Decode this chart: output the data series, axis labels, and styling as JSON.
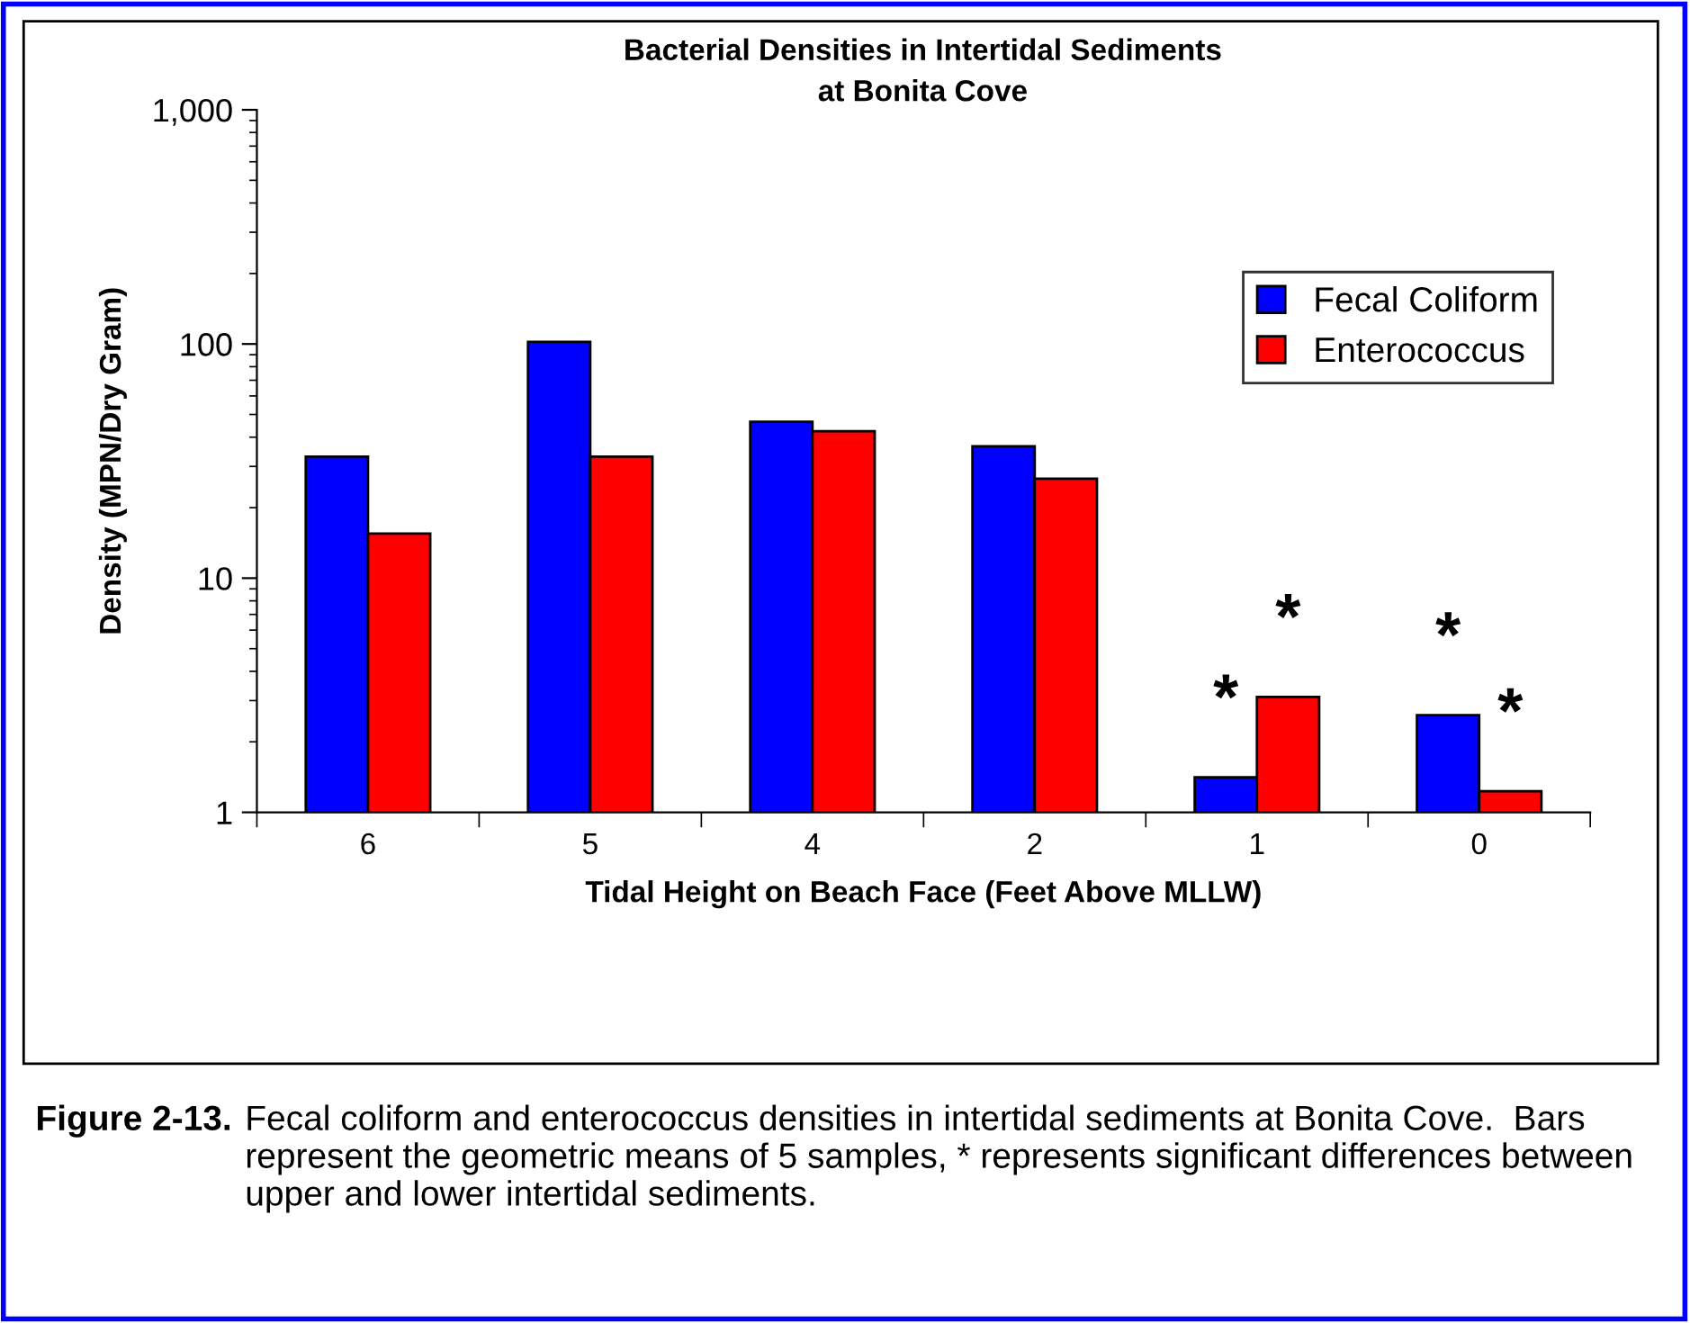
{
  "chart_data": {
    "type": "bar",
    "title": "Bacterial Densities in Intertidal Sediments\nat Bonita Cove",
    "xlabel": "Tidal Height on Beach Face (Feet Above MLLW)",
    "ylabel": "Density (MPN/Dry Gram)",
    "categories": [
      "6",
      "5",
      "4",
      "2",
      "1",
      "0"
    ],
    "series": [
      {
        "name": "Fecal Coliform",
        "color": "#0000ff",
        "values": [
          33,
          102,
          46.5,
          36.6,
          1.41,
          2.6
        ]
      },
      {
        "name": "Enterococcus",
        "color": "#ff0000",
        "values": [
          15.5,
          33,
          42.4,
          26.6,
          3.11,
          1.23
        ]
      }
    ],
    "log": true,
    "ylim": [
      1,
      1000
    ],
    "yticks": [
      1,
      10,
      100,
      {
        "value": 1000,
        "label": "1,000"
      }
    ],
    "grid": false,
    "legend": "right",
    "annotations": [
      {
        "text": "*",
        "x": "1",
        "y": 1.41
      },
      {
        "text": "*",
        "x": "1",
        "y": 3.11
      },
      {
        "text": "*",
        "x": "0",
        "y": 2.6
      },
      {
        "text": "*",
        "x": "0",
        "y": 1.23
      },
      "Figure 2-13.",
      "Fecal coliform and enterococcus densities in intertidal sediments at Bonita Cove.  Bars represent the geometric means of 5 samples, * represents significant differences between upper and lower intertidal sediments."
    ]
  }
}
